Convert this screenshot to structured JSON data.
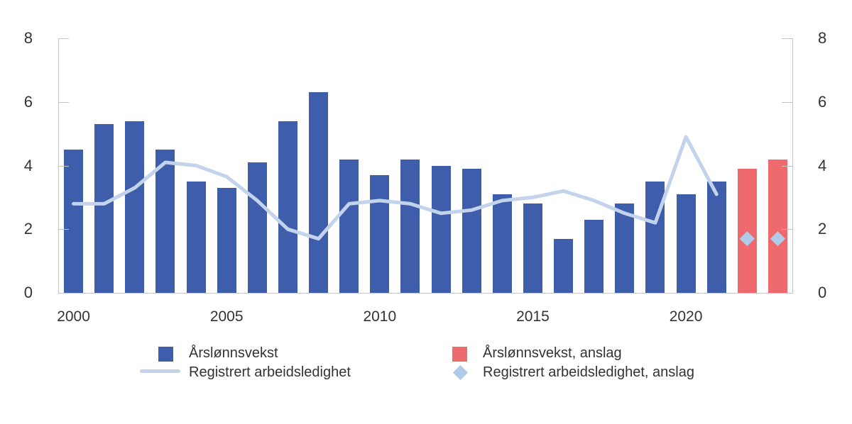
{
  "chart_data": {
    "type": "combo",
    "title": "",
    "years": [
      "2000",
      "2001",
      "2002",
      "2003",
      "2004",
      "2005",
      "2006",
      "2007",
      "2008",
      "2009",
      "2010",
      "2011",
      "2012",
      "2013",
      "2014",
      "2015",
      "2016",
      "2017",
      "2018",
      "2019",
      "2020",
      "2021",
      "2022",
      "2023"
    ],
    "series": [
      {
        "name": "Årslønnsvekst",
        "type": "bar",
        "color": "#3E5EAB",
        "values": [
          4.5,
          5.3,
          5.4,
          4.5,
          3.5,
          3.3,
          4.1,
          5.4,
          6.3,
          4.2,
          3.7,
          4.2,
          4.0,
          3.9,
          3.1,
          2.8,
          1.7,
          2.3,
          2.8,
          3.5,
          3.1,
          3.5,
          null,
          null
        ]
      },
      {
        "name": "Årslønnsvekst, anslag",
        "type": "bar",
        "color": "#EF6A6D",
        "values": [
          null,
          null,
          null,
          null,
          null,
          null,
          null,
          null,
          null,
          null,
          null,
          null,
          null,
          null,
          null,
          null,
          null,
          null,
          null,
          null,
          null,
          null,
          3.9,
          4.2
        ]
      },
      {
        "name": "Registrert arbeidsledighet",
        "type": "line",
        "color": "#C2D3EB",
        "values": [
          2.8,
          2.8,
          3.3,
          4.1,
          4.0,
          3.65,
          2.9,
          2.0,
          1.7,
          2.8,
          2.9,
          2.8,
          2.5,
          2.6,
          2.9,
          3.0,
          3.2,
          2.9,
          2.5,
          2.2,
          4.9,
          3.1,
          null,
          null
        ]
      },
      {
        "name": "Registrert arbeidsledighet, anslag",
        "type": "scatter-diamond",
        "color": "#AECBEA",
        "values": [
          null,
          null,
          null,
          null,
          null,
          null,
          null,
          null,
          null,
          null,
          null,
          null,
          null,
          null,
          null,
          null,
          null,
          null,
          null,
          null,
          null,
          null,
          1.7,
          1.7
        ]
      }
    ],
    "ylim": [
      0,
      8
    ],
    "yticks": [
      0,
      2,
      4,
      6,
      8
    ],
    "yticks_labels": [
      "0",
      "2",
      "4",
      "6",
      "8"
    ],
    "y_axis_sides": [
      "left",
      "right"
    ],
    "xticks": [
      2000,
      2005,
      2010,
      2015,
      2020
    ],
    "xticks_labels": [
      "2000",
      "2005",
      "2010",
      "2015",
      "2020"
    ],
    "grid": false,
    "legend_position": "bottom"
  },
  "colors": {
    "background": "#FFFFFF",
    "axis": "#C4C4C4",
    "text": "#333333",
    "bar_blue": "#3E5EAB",
    "bar_red": "#EF6A6D",
    "line_light_blue": "#C2D3EB",
    "diamond_light_blue": "#AECBEA"
  }
}
